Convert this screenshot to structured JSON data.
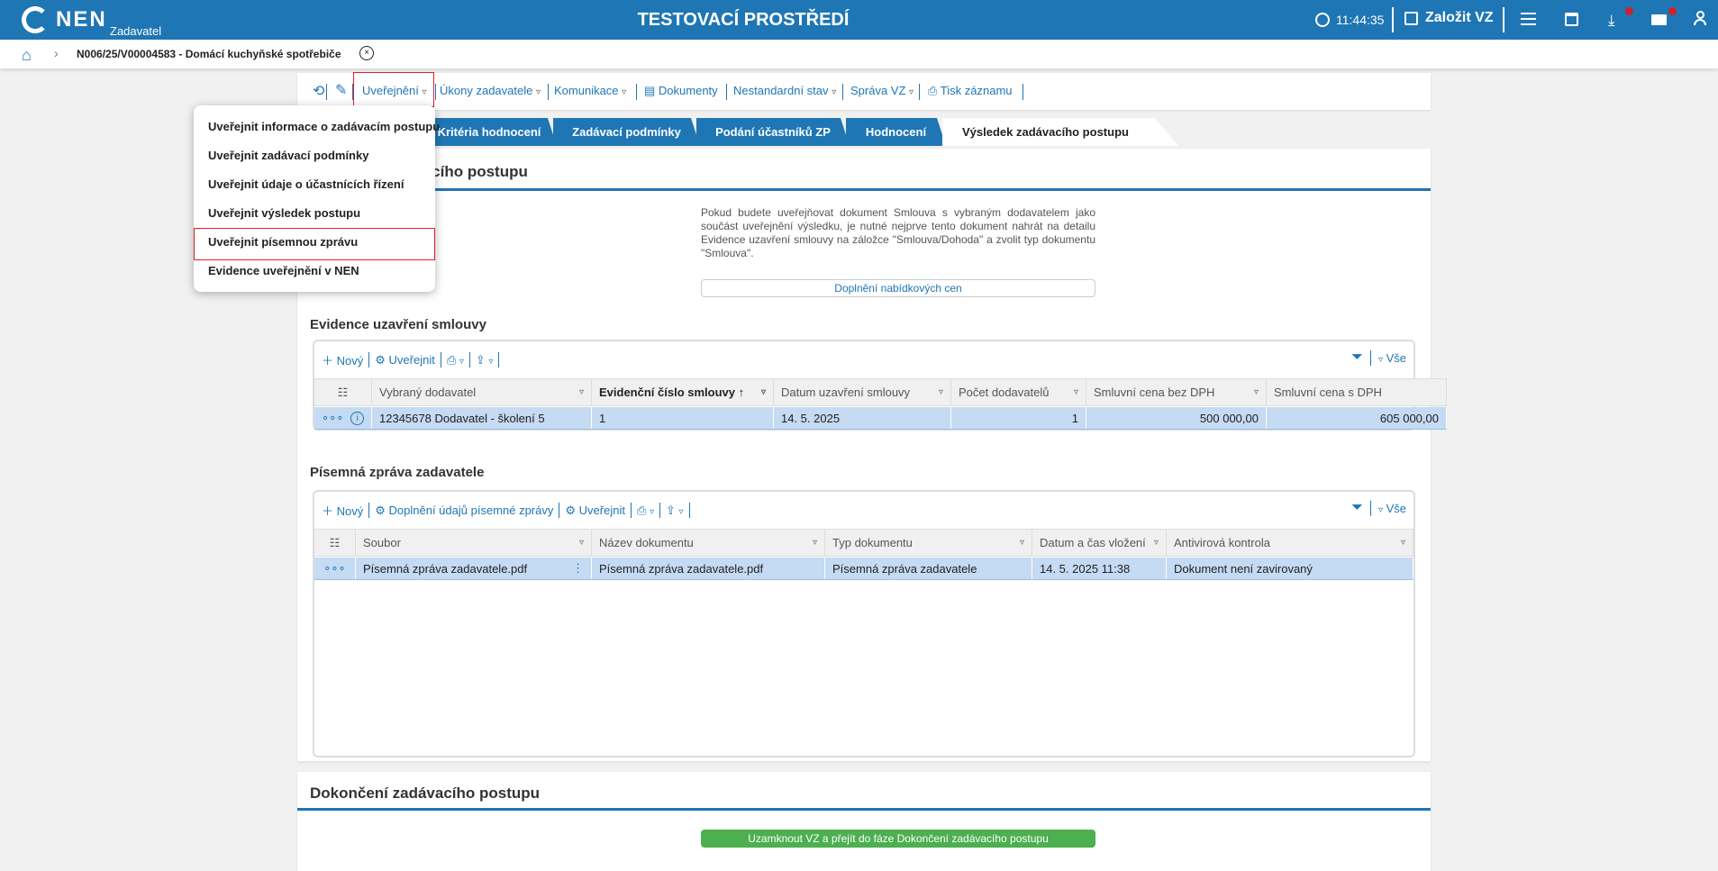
{
  "header": {
    "logo": "NEN",
    "logo_sub": "Zadavatel",
    "env_title": "TESTOVACÍ PROSTŘEDÍ",
    "time": "11:44:35",
    "create_label": "Založit VZ",
    "accent": "#1f76b4",
    "badge_color": "#d0202a"
  },
  "breadcrumb": {
    "title": "N006/25/V00004583 - Domácí kuchyňské spotřebiče"
  },
  "toolbar": {
    "items": [
      "Uveřejnění",
      "Úkony zadavatele",
      "Komunikace",
      "Dokumenty",
      "Nestandardní stav",
      "Správa VZ",
      "Tisk záznamu"
    ]
  },
  "dropdown": {
    "items": [
      "Uveřejnit informace o zadávacím postupu",
      "Uveřejnit zadávací podmínky",
      "Uveřejnit údaje o účastnících řízení",
      "Uveřejnit výsledek postupu",
      "Uveřejnit písemnou zprávu",
      "Evidence uveřejnění v NEN"
    ],
    "highlighted": 4
  },
  "tabs": [
    "Kritéria hodnocení",
    "Zadávací podmínky",
    "Podání účastníků ZP",
    "Hodnocení",
    "Výsledek zadávacího postupu"
  ],
  "section": {
    "title": "Výsledek zadávacího postupu",
    "info": "Pokud budete uveřejňovat dokument Smlouva s vybraným dodavatelem jako součást uveřejnění výsledku, je nutné nejprve tento dokument nahrát na detailu Evidence uzavření smlouvy na záložce \"Smlouva/Dohoda\" a zvolit typ dokumentu \"Smlouva\".",
    "button": "Doplnění nabídkových cen"
  },
  "grid1": {
    "title": "Evidence uzavření smlouvy",
    "toolbar": {
      "new": "Nový",
      "publish": "Uveřejnit",
      "all": "Vše"
    },
    "columns": [
      "Vybraný dodavatel",
      "Evidenční číslo smlouvy",
      "Datum uzavření smlouvy",
      "Počet dodavatelů",
      "Smluvní cena bez DPH",
      "Smluvní cena s DPH"
    ],
    "rows": [
      [
        "12345678 Dodavatel - školení 5",
        "1",
        "14. 5. 2025",
        "1",
        "500 000,00",
        "605 000,00"
      ]
    ]
  },
  "grid2": {
    "title": "Písemná zpráva zadavatele",
    "toolbar": {
      "new": "Nový",
      "fill": "Doplnění údajů písemné zprávy",
      "publish": "Uveřejnit",
      "all": "Vše"
    },
    "columns": [
      "Soubor",
      "Název dokumentu",
      "Typ dokumentu",
      "Datum a čas vložení",
      "Antivirová kontrola"
    ],
    "rows": [
      [
        "Písemná zpráva zadavatele.pdf",
        "Písemná zpráva zadavatele.pdf",
        "Písemná zpráva zadavatele",
        "14. 5. 2025 11:38",
        "Dokument není zavirovaný"
      ]
    ]
  },
  "finish": {
    "title": "Dokončení zadávacího postupu",
    "button": "Uzamknout VZ a přejít do fáze Dokončení zadávacího postupu",
    "button_color": "#4caf50"
  }
}
